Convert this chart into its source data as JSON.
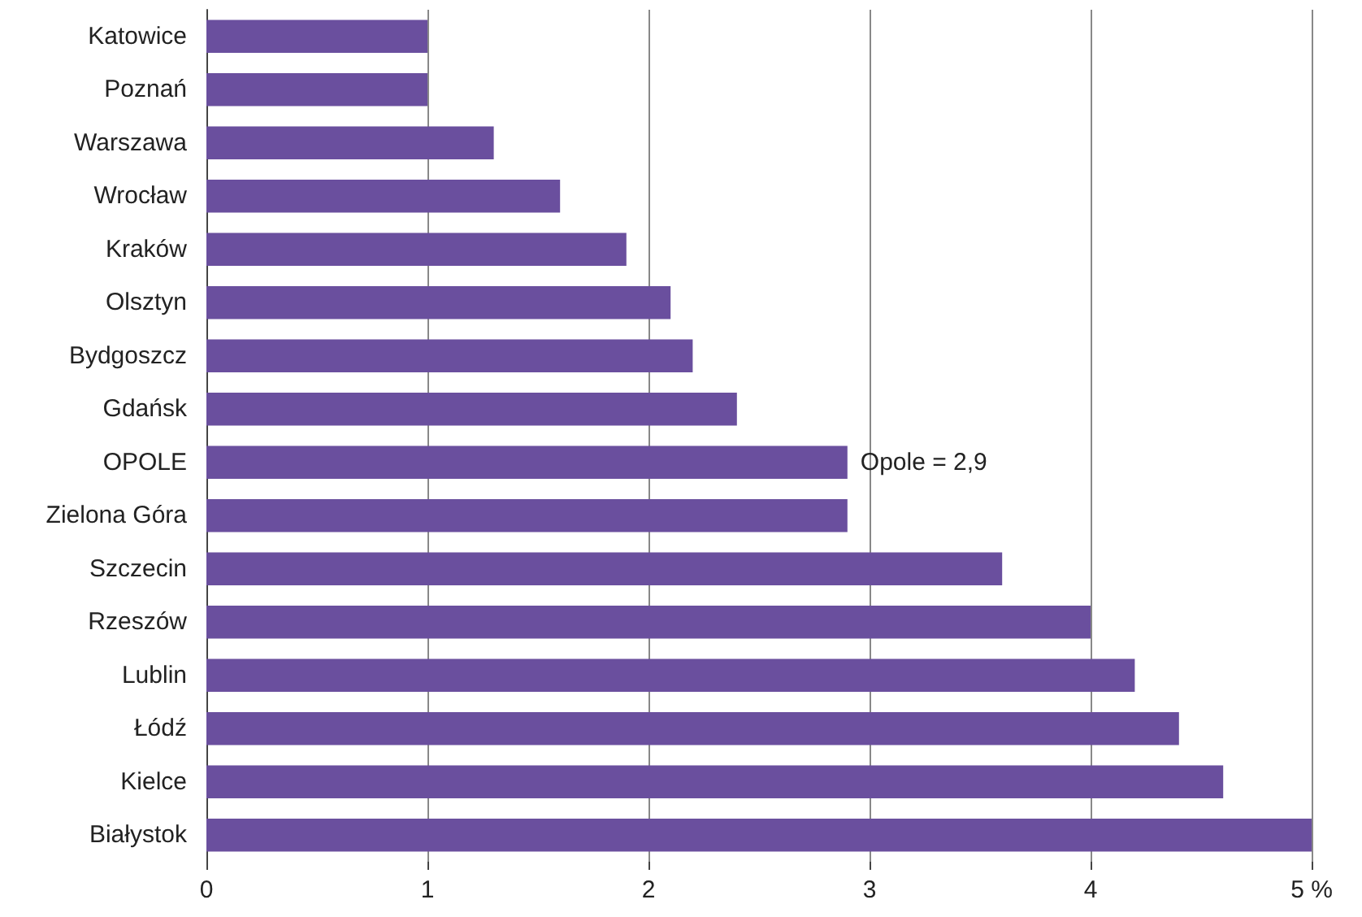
{
  "chart_data": {
    "type": "bar",
    "orientation": "horizontal",
    "categories": [
      "Katowice",
      "Poznań",
      "Warszawa",
      "Wrocław",
      "Kraków",
      "Olsztyn",
      "Bydgoszcz",
      "Gdańsk",
      "OPOLE",
      "Zielona Góra",
      "Szczecin",
      "Rzeszów",
      "Lublin",
      "Łódź",
      "Kielce",
      "Białystok"
    ],
    "values": [
      1.0,
      1.0,
      1.3,
      1.6,
      1.9,
      2.1,
      2.2,
      2.4,
      2.9,
      2.9,
      3.6,
      4.0,
      4.2,
      4.4,
      4.6,
      5.0
    ],
    "color": "#6a4f9e",
    "xlim": [
      0,
      5
    ],
    "xticks": [
      0,
      1,
      2,
      3,
      4,
      {
        "value": 5,
        "label": "5 %"
      }
    ],
    "grid": "x",
    "annotations": [
      {
        "text": "Opole = 2,9",
        "x": 2.9,
        "y": "OPOLE"
      }
    ]
  }
}
